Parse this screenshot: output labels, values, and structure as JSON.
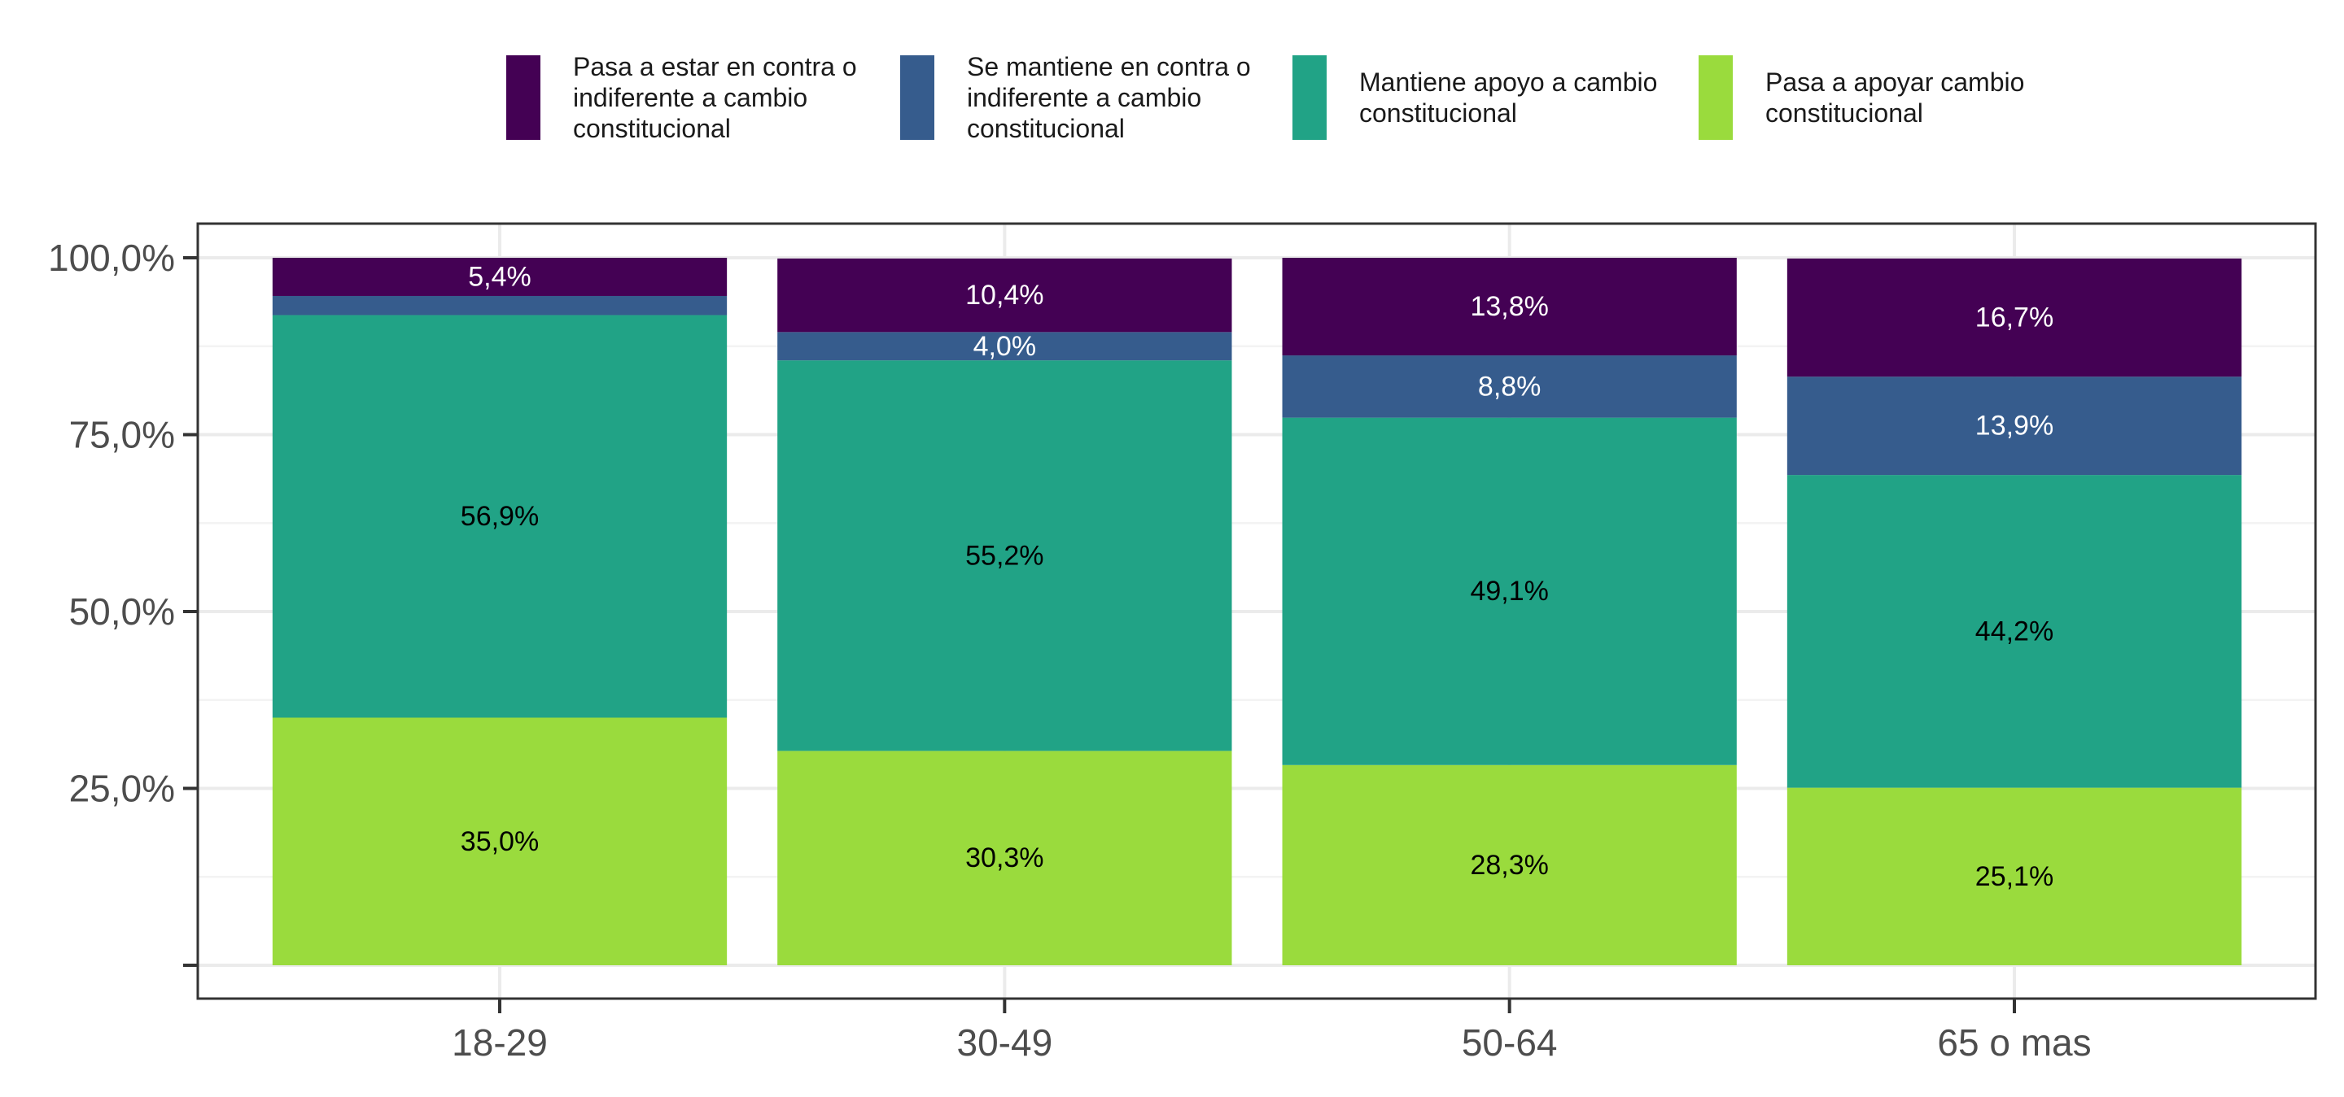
{
  "chart_data": {
    "type": "bar",
    "stacked": true,
    "categories": [
      "18-29",
      "30-49",
      "50-64",
      "65 o mas"
    ],
    "series": [
      {
        "name": "Pasa a apoyar cambio constitucional",
        "legend_lines": [
          "Pasa a apoyar cambio",
          "constitucional"
        ],
        "color": "#9ADB3D",
        "label_color": "#000000",
        "values": [
          35.0,
          30.3,
          28.3,
          25.1
        ],
        "labels": [
          "35,0%",
          "30,3%",
          "28,3%",
          "25,1%"
        ]
      },
      {
        "name": "Mantiene apoyo a cambio constitucional",
        "legend_lines": [
          "Mantiene apoyo a cambio",
          "constitucional"
        ],
        "color": "#21A386",
        "label_color": "#000000",
        "values": [
          56.9,
          55.2,
          49.1,
          44.2
        ],
        "labels": [
          "56,9%",
          "55,2%",
          "49,1%",
          "44,2%"
        ]
      },
      {
        "name": "Se mantiene en contra o indiferente a cambio constitucional",
        "legend_lines": [
          "Se mantiene en contra o",
          "indiferente a cambio",
          "constitucional"
        ],
        "color": "#365C8D",
        "label_color": "#ffffff",
        "values": [
          2.7,
          4.0,
          8.8,
          13.9
        ],
        "labels": [
          "",
          "4,0%",
          "8,8%",
          "13,9%"
        ]
      },
      {
        "name": "Pasa a estar en contra o indiferente a cambio constitucional",
        "legend_lines": [
          "Pasa a estar en contra o",
          "indiferente a cambio",
          "constitucional"
        ],
        "color": "#440154",
        "label_color": "#ffffff",
        "values": [
          5.4,
          10.4,
          13.8,
          16.7
        ],
        "labels": [
          "5,4%",
          "10,4%",
          "13,8%",
          "16,7%"
        ]
      }
    ],
    "legend_order": [
      3,
      2,
      1,
      0
    ],
    "legend_position": "top",
    "ylim": [
      0,
      100
    ],
    "yticks": [
      0,
      25,
      50,
      75,
      100
    ],
    "ytick_labels": [
      "",
      "25,0%",
      "50,0%",
      "75,0%",
      "100,0%"
    ],
    "xlabel": "",
    "ylabel": "",
    "grid": true,
    "colors": {
      "panel_border": "#333333",
      "grid_major": "#EBEBEB",
      "grid_minor": "#F3F3F3",
      "tick": "#333333",
      "tick_label": "#4D4D4D",
      "legend_text": "#1A1A1A"
    }
  }
}
